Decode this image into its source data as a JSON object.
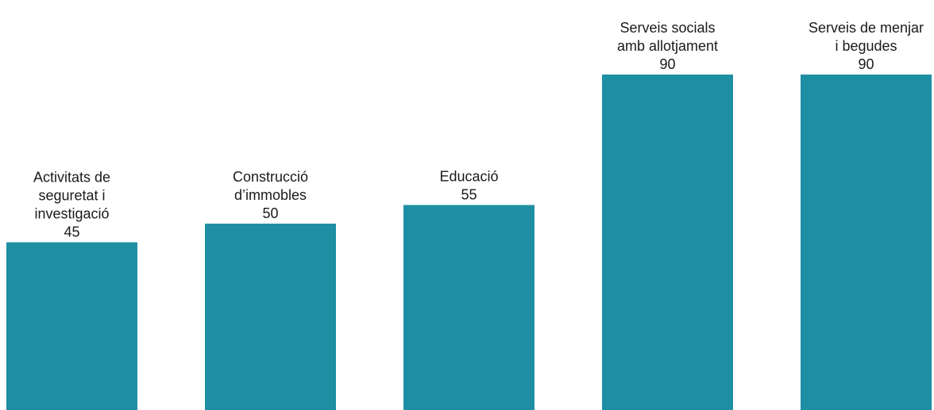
{
  "chart_data": {
    "type": "bar",
    "title": "",
    "xlabel": "",
    "ylabel": "",
    "categories": [
      [
        "Activitats de",
        "seguretat i",
        "investigació"
      ],
      [
        "Construcció",
        "d’immobles"
      ],
      [
        "Educació"
      ],
      [
        "Serveis socials",
        "amb allotjament"
      ],
      [
        "Serveis de menjar",
        "i begudes"
      ]
    ],
    "values": [
      45,
      50,
      55,
      90,
      90
    ],
    "ylim": [
      0,
      90
    ],
    "grid": false,
    "legend": "none",
    "bar_color": "#1e8fa3",
    "label_color": "#1a1a1a"
  }
}
